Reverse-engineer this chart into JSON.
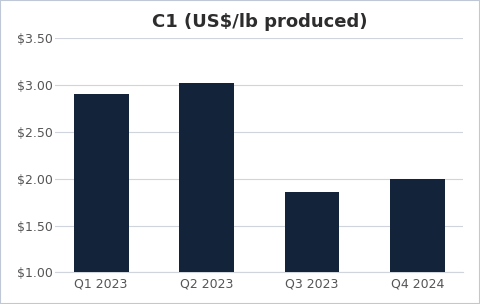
{
  "categories": [
    "Q1 2023",
    "Q2 2023",
    "Q3 2023",
    "Q4 2024"
  ],
  "values": [
    2.9,
    3.02,
    1.86,
    2.0
  ],
  "bar_color": "#12233a",
  "title": "C1 (US$/lb produced)",
  "ylim": [
    1.0,
    3.5
  ],
  "yticks": [
    1.0,
    1.5,
    2.0,
    2.5,
    3.0,
    3.5
  ],
  "background_color": "#ffffff",
  "figure_border_color": "#c0c8d8",
  "grid_color": "#d0d4dc",
  "title_fontsize": 13,
  "tick_fontsize": 9,
  "title_color": "#2d2d2d",
  "tick_color": "#555555"
}
